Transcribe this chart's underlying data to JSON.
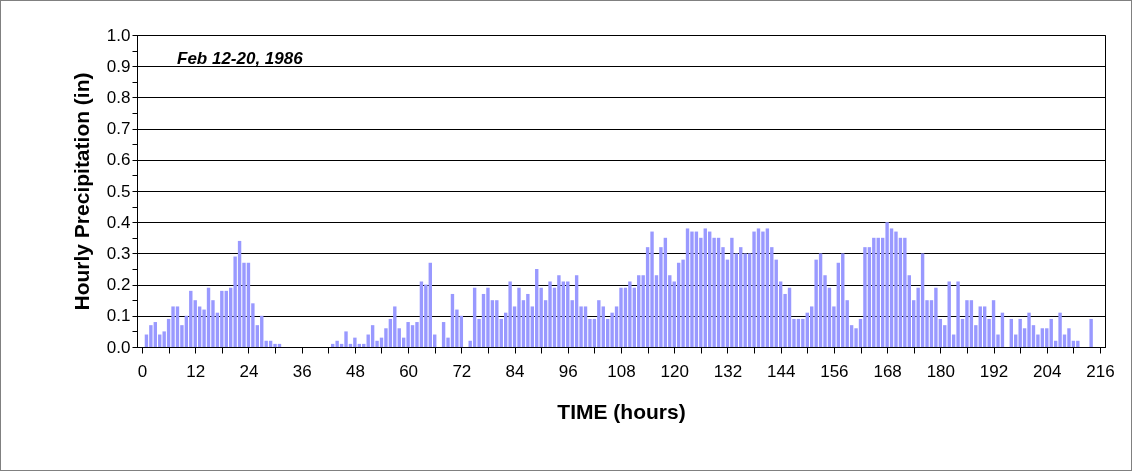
{
  "chart_data": {
    "type": "bar",
    "xlabel": "TIME (hours)",
    "ylabel": "Hourly Precipitation (in)",
    "annotations": [
      "Feb 12-20, 1986"
    ],
    "color": "#9999ff",
    "grid": "y",
    "xlim": [
      0,
      216
    ],
    "ylim": [
      0,
      1
    ],
    "xticks": [
      0,
      {
        "value": 6,
        "label": null
      },
      12,
      {
        "value": 18,
        "label": null
      },
      24,
      {
        "value": 30,
        "label": null
      },
      36,
      {
        "value": 42,
        "label": null
      },
      48,
      {
        "value": 54,
        "label": null
      },
      60,
      {
        "value": 66,
        "label": null
      },
      72,
      {
        "value": 78,
        "label": null
      },
      84,
      {
        "value": 90,
        "label": null
      },
      96,
      {
        "value": 102,
        "label": null
      },
      108,
      {
        "value": 114,
        "label": null
      },
      120,
      {
        "value": 126,
        "label": null
      },
      132,
      {
        "value": 138,
        "label": null
      },
      144,
      {
        "value": 150,
        "label": null
      },
      156,
      {
        "value": 162,
        "label": null
      },
      168,
      {
        "value": 174,
        "label": null
      },
      180,
      {
        "value": 186,
        "label": null
      },
      192,
      {
        "value": 198,
        "label": null
      },
      204,
      {
        "value": 210,
        "label": null
      },
      216
    ],
    "yticks": [
      {
        "value": 0,
        "label": "0.0"
      },
      {
        "value": 0.05,
        "label": null
      },
      0.1,
      {
        "value": 0.15,
        "label": null
      },
      0.2,
      {
        "value": 0.25,
        "label": null
      },
      0.3,
      {
        "value": 0.35,
        "label": null
      },
      0.4,
      {
        "value": 0.45,
        "label": null
      },
      0.5,
      {
        "value": 0.55,
        "label": null
      },
      0.6,
      {
        "value": 0.65,
        "label": null
      },
      0.7,
      {
        "value": 0.75,
        "label": null
      },
      0.8,
      {
        "value": 0.85,
        "label": null
      },
      0.9,
      {
        "value": 0.95,
        "label": null
      },
      {
        "value": 1,
        "label": "1.0"
      }
    ],
    "x": [
      1,
      2,
      3,
      4,
      5,
      6,
      7,
      8,
      9,
      10,
      11,
      12,
      13,
      14,
      15,
      16,
      17,
      18,
      19,
      20,
      21,
      22,
      23,
      24,
      25,
      26,
      27,
      28,
      29,
      30,
      31,
      32,
      33,
      34,
      35,
      36,
      37,
      38,
      39,
      40,
      41,
      42,
      43,
      44,
      45,
      46,
      47,
      48,
      49,
      50,
      51,
      52,
      53,
      54,
      55,
      56,
      57,
      58,
      59,
      60,
      61,
      62,
      63,
      64,
      65,
      66,
      67,
      68,
      69,
      70,
      71,
      72,
      73,
      74,
      75,
      76,
      77,
      78,
      79,
      80,
      81,
      82,
      83,
      84,
      85,
      86,
      87,
      88,
      89,
      90,
      91,
      92,
      93,
      94,
      95,
      96,
      97,
      98,
      99,
      100,
      101,
      102,
      103,
      104,
      105,
      106,
      107,
      108,
      109,
      110,
      111,
      112,
      113,
      114,
      115,
      116,
      117,
      118,
      119,
      120,
      121,
      122,
      123,
      124,
      125,
      126,
      127,
      128,
      129,
      130,
      131,
      132,
      133,
      134,
      135,
      136,
      137,
      138,
      139,
      140,
      141,
      142,
      143,
      144,
      145,
      146,
      147,
      148,
      149,
      150,
      151,
      152,
      153,
      154,
      155,
      156,
      157,
      158,
      159,
      160,
      161,
      162,
      163,
      164,
      165,
      166,
      167,
      168,
      169,
      170,
      171,
      172,
      173,
      174,
      175,
      176,
      177,
      178,
      179,
      180,
      181,
      182,
      183,
      184,
      185,
      186,
      187,
      188,
      189,
      190,
      191,
      192,
      193,
      194,
      195,
      196,
      197,
      198,
      199,
      200,
      201,
      202,
      203,
      204,
      205,
      206,
      207,
      208,
      209,
      210,
      211,
      212,
      213,
      214
    ],
    "values": [
      0.04,
      0.07,
      0.08,
      0.04,
      0.05,
      0.09,
      0.13,
      0.13,
      0.07,
      0.1,
      0.18,
      0.15,
      0.13,
      0.12,
      0.19,
      0.15,
      0.11,
      0.18,
      0.18,
      0.19,
      0.29,
      0.34,
      0.27,
      0.27,
      0.14,
      0.07,
      0.1,
      0.02,
      0.02,
      0.01,
      0.01,
      0,
      0,
      0,
      0,
      0,
      0,
      0,
      0,
      0,
      0,
      0,
      0.01,
      0.02,
      0.01,
      0.05,
      0.01,
      0.03,
      0.01,
      0.01,
      0.04,
      0.07,
      0.02,
      0.03,
      0.06,
      0.09,
      0.13,
      0.06,
      0.03,
      0.08,
      0.07,
      0.08,
      0.21,
      0.2,
      0.27,
      0.04,
      0,
      0.08,
      0.03,
      0.17,
      0.12,
      0.1,
      0,
      0.02,
      0.19,
      0.09,
      0.17,
      0.19,
      0.15,
      0.15,
      0.09,
      0.11,
      0.21,
      0.13,
      0.19,
      0.15,
      0.17,
      0.13,
      0.25,
      0.19,
      0.15,
      0.21,
      0.19,
      0.23,
      0.21,
      0.21,
      0.15,
      0.23,
      0.13,
      0.13,
      0.09,
      0.09,
      0.15,
      0.13,
      0.09,
      0.11,
      0.13,
      0.19,
      0.19,
      0.21,
      0.19,
      0.23,
      0.23,
      0.32,
      0.37,
      0.23,
      0.32,
      0.35,
      0.23,
      0.21,
      0.27,
      0.28,
      0.38,
      0.37,
      0.37,
      0.35,
      0.38,
      0.37,
      0.35,
      0.35,
      0.32,
      0.28,
      0.35,
      0.3,
      0.32,
      0.3,
      0.3,
      0.37,
      0.38,
      0.37,
      0.38,
      0.32,
      0.28,
      0.21,
      0.17,
      0.19,
      0.09,
      0.09,
      0.09,
      0.11,
      0.13,
      0.28,
      0.3,
      0.23,
      0.19,
      0.13,
      0.27,
      0.3,
      0.15,
      0.07,
      0.06,
      0.09,
      0.32,
      0.32,
      0.35,
      0.35,
      0.35,
      0.4,
      0.38,
      0.37,
      0.35,
      0.35,
      0.23,
      0.15,
      0.19,
      0.3,
      0.15,
      0.15,
      0.19,
      0.09,
      0.07,
      0.21,
      0.04,
      0.21,
      0.09,
      0.15,
      0.15,
      0.07,
      0.13,
      0.13,
      0.09,
      0.15,
      0.04,
      0.11,
      0,
      0.09,
      0.04,
      0.09,
      0.06,
      0.11,
      0.07,
      0.04,
      0.06,
      0.06,
      0.09,
      0.02,
      0.11,
      0.04,
      0.06,
      0.02,
      0.02,
      0,
      0,
      0.09
    ]
  }
}
